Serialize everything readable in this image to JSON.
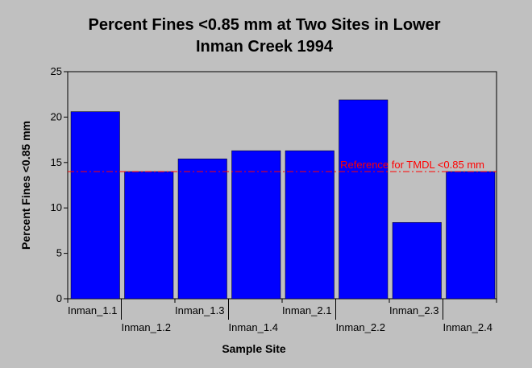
{
  "chart_data": {
    "type": "bar",
    "title_lines": [
      "Percent Fines <0.85 mm at Two Sites in Lower",
      "Inman Creek 1994"
    ],
    "xlabel": "Sample Site",
    "ylabel": "Percent Fines <0.85 mm",
    "categories": [
      "Inman_1.1",
      "Inman_1.2",
      "Inman_1.3",
      "Inman_1.4",
      "Inman_2.1",
      "Inman_2.2",
      "Inman_2.3",
      "Inman_2.4"
    ],
    "values": [
      20.6,
      14.0,
      15.4,
      16.3,
      16.3,
      21.9,
      8.4,
      14.0
    ],
    "ylim": [
      0,
      25
    ],
    "yticks": [
      0,
      5,
      10,
      15,
      20,
      25
    ],
    "grid": false,
    "bar_color": "#0000ff",
    "background_color": "#c0c0c0",
    "reference_line": {
      "value": 14.0,
      "label": "Reference for TMDL <0.85 mm",
      "color": "#ff0000",
      "style": "dash-dot"
    }
  }
}
